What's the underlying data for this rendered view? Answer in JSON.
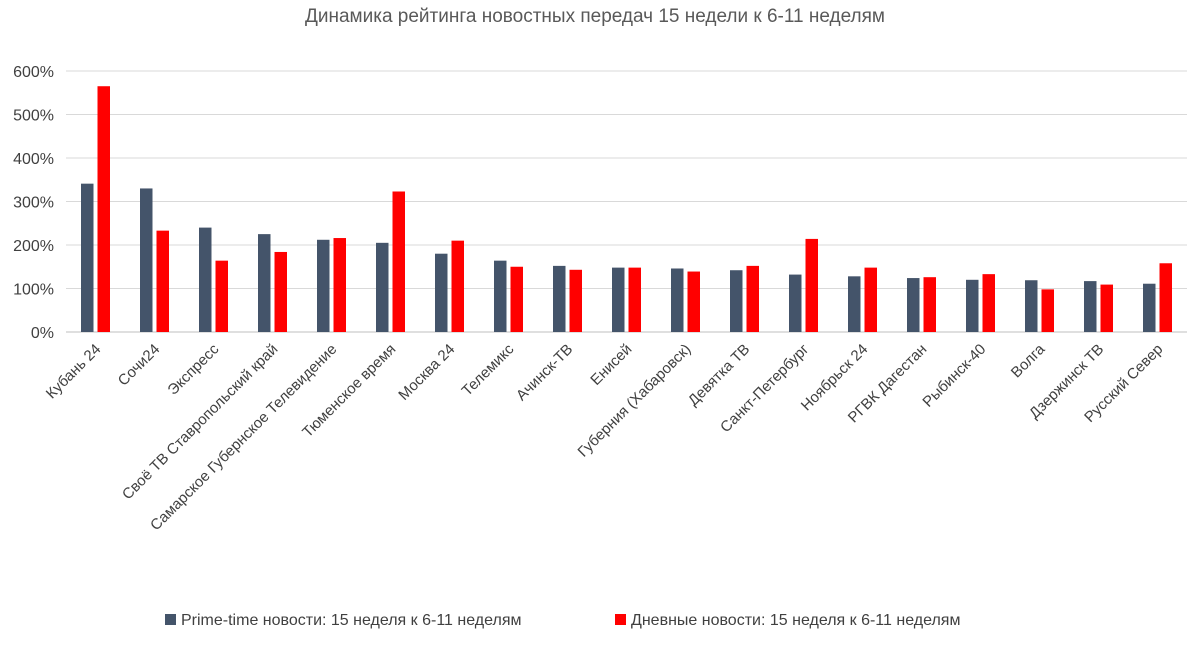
{
  "chart_data": {
    "type": "bar",
    "title": "Динамика рейтинга новостных передач 15 недели к 6-11 неделям",
    "xlabel": "",
    "ylabel": "",
    "ylim": [
      0,
      600
    ],
    "yticks": [
      0,
      100,
      200,
      300,
      400,
      500,
      600
    ],
    "ytick_labels": [
      "0%",
      "100%",
      "200%",
      "300%",
      "400%",
      "500%",
      "600%"
    ],
    "grid": true,
    "legend_position": "bottom",
    "categories": [
      "Кубань 24",
      "Сочи24",
      "Экспресс",
      "Своё ТВ Ставропольский край",
      "Самарское Губернское Телевидение",
      "Тюменское время",
      "Москва 24",
      "Телемикс",
      "Ачинск-ТВ",
      "Енисей",
      "Губерния (Хабаровск)",
      "Девятка ТВ",
      "Санкт-Петербург",
      "Ноябрьск 24",
      "РГВК Дагестан",
      "Рыбинск-40",
      "Волга",
      "Дзержинск ТВ",
      "Русский Север"
    ],
    "series": [
      {
        "name": "Prime-time новости: 15 неделя к 6-11 неделям",
        "color": "#44546a",
        "values": [
          341,
          330,
          240,
          225,
          212,
          205,
          180,
          164,
          152,
          148,
          146,
          142,
          132,
          128,
          124,
          120,
          119,
          117,
          111
        ]
      },
      {
        "name": "Дневные новости: 15 неделя к 6-11 неделям",
        "color": "#ff0000",
        "values": [
          565,
          233,
          164,
          184,
          216,
          323,
          210,
          150,
          143,
          148,
          139,
          152,
          214,
          148,
          126,
          133,
          98,
          109,
          158
        ]
      }
    ]
  }
}
